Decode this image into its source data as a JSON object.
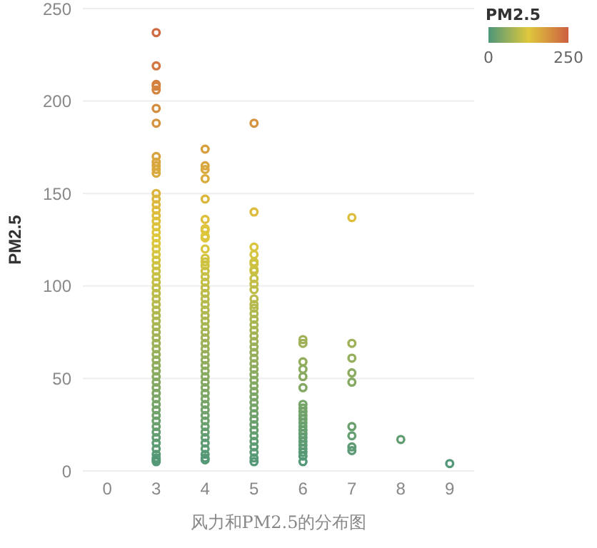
{
  "chart_data": {
    "type": "scatter",
    "xlabel": "风力和PM2.5的分布图",
    "ylabel": "PM2.5",
    "clabel": "PM2.5",
    "categories": [
      "0",
      "3",
      "4",
      "5",
      "6",
      "7",
      "8",
      "9"
    ],
    "ylim": [
      0,
      250
    ],
    "yticks": [
      0,
      50,
      100,
      150,
      200,
      250
    ],
    "grid": "y",
    "marker": "circle",
    "clim": [
      0,
      250
    ],
    "cticks": [
      0,
      250
    ],
    "series": [
      {
        "x": [
          "3",
          "3",
          "3",
          "3",
          "3",
          "3",
          "3",
          "3",
          "3",
          "3",
          "3",
          "3",
          "3",
          "3",
          "3",
          "3",
          "3",
          "3",
          "3",
          "3",
          "3",
          "3",
          "3",
          "3",
          "3",
          "3",
          "3",
          "3",
          "3",
          "3",
          "3",
          "3",
          "3",
          "3",
          "3",
          "3",
          "3",
          "3",
          "3",
          "3",
          "3",
          "3",
          "3",
          "3",
          "3",
          "3",
          "3",
          "3",
          "3",
          "3",
          "3",
          "3",
          "3",
          "3",
          "3",
          "3",
          "3",
          "3",
          "3",
          "3",
          "3",
          "3",
          "3",
          "4",
          "4",
          "4",
          "4",
          "4",
          "4",
          "4",
          "4",
          "4",
          "4",
          "4",
          "4",
          "4",
          "4",
          "4",
          "4",
          "4",
          "4",
          "4",
          "4",
          "4",
          "4",
          "4",
          "4",
          "4",
          "4",
          "4",
          "4",
          "4",
          "4",
          "4",
          "4",
          "4",
          "4",
          "4",
          "4",
          "4",
          "4",
          "4",
          "4",
          "4",
          "4",
          "4",
          "4",
          "4",
          "4",
          "4",
          "4",
          "4",
          "4",
          "5",
          "5",
          "5",
          "5",
          "5",
          "5",
          "5",
          "5",
          "5",
          "5",
          "5",
          "5",
          "5",
          "5",
          "5",
          "5",
          "5",
          "5",
          "5",
          "5",
          "5",
          "5",
          "5",
          "5",
          "5",
          "5",
          "5",
          "5",
          "5",
          "5",
          "5",
          "5",
          "5",
          "5",
          "5",
          "5",
          "5",
          "5",
          "5",
          "5",
          "5",
          "5",
          "6",
          "6",
          "6",
          "6",
          "6",
          "6",
          "6",
          "6",
          "6",
          "6",
          "6",
          "6",
          "6",
          "6",
          "6",
          "6",
          "6",
          "6",
          "6",
          "6",
          "6",
          "6",
          "7",
          "7",
          "7",
          "7",
          "7",
          "7",
          "7",
          "7",
          "7",
          "8",
          "9"
        ],
        "values": [
          237,
          219,
          209,
          208,
          206,
          196,
          188,
          170,
          167,
          165,
          163,
          161,
          150,
          147,
          144,
          141,
          138,
          135,
          132,
          129,
          126,
          123,
          120,
          117,
          114,
          111,
          108,
          105,
          102,
          99,
          96,
          93,
          90,
          87,
          84,
          81,
          78,
          75,
          72,
          69,
          66,
          63,
          60,
          57,
          54,
          51,
          48,
          45,
          42,
          39,
          36,
          33,
          30,
          27,
          24,
          21,
          18,
          15,
          12,
          9,
          7,
          6,
          5,
          174,
          165,
          163,
          158,
          147,
          136,
          131,
          130,
          127,
          126,
          120,
          115,
          113,
          111,
          108,
          105,
          102,
          99,
          96,
          93,
          90,
          87,
          84,
          81,
          78,
          75,
          72,
          69,
          66,
          63,
          60,
          57,
          54,
          51,
          48,
          45,
          42,
          39,
          36,
          33,
          30,
          27,
          24,
          21,
          18,
          15,
          12,
          9,
          7,
          6,
          188,
          140,
          121,
          117,
          113,
          109,
          112,
          108,
          104,
          101,
          98,
          93,
          90,
          88,
          85,
          82,
          79,
          76,
          73,
          70,
          67,
          64,
          61,
          58,
          55,
          52,
          49,
          46,
          43,
          40,
          37,
          34,
          31,
          28,
          25,
          22,
          19,
          16,
          13,
          10,
          7,
          5,
          71,
          69,
          59,
          55,
          51,
          45,
          36,
          34,
          32,
          30,
          28,
          26,
          24,
          22,
          20,
          18,
          16,
          14,
          12,
          10,
          8,
          5,
          137,
          69,
          61,
          53,
          48,
          24,
          19,
          13,
          11,
          17,
          4
        ],
        "cvalues": [
          237,
          219,
          209,
          208,
          206,
          196,
          188,
          170,
          167,
          165,
          163,
          161,
          150,
          147,
          144,
          141,
          138,
          135,
          132,
          129,
          126,
          123,
          120,
          117,
          114,
          111,
          108,
          105,
          102,
          99,
          96,
          93,
          90,
          87,
          84,
          81,
          78,
          75,
          72,
          69,
          66,
          63,
          60,
          57,
          54,
          51,
          48,
          45,
          42,
          39,
          36,
          33,
          30,
          27,
          24,
          21,
          18,
          15,
          12,
          9,
          7,
          6,
          5,
          174,
          165,
          163,
          158,
          147,
          136,
          131,
          130,
          127,
          126,
          120,
          115,
          113,
          111,
          108,
          105,
          102,
          99,
          96,
          93,
          90,
          87,
          84,
          81,
          78,
          75,
          72,
          69,
          66,
          63,
          60,
          57,
          54,
          51,
          48,
          45,
          42,
          39,
          36,
          33,
          30,
          27,
          24,
          21,
          18,
          15,
          12,
          9,
          7,
          6,
          188,
          140,
          121,
          117,
          113,
          109,
          112,
          108,
          104,
          101,
          98,
          93,
          90,
          88,
          85,
          82,
          79,
          76,
          73,
          70,
          67,
          64,
          61,
          58,
          55,
          52,
          49,
          46,
          43,
          40,
          37,
          34,
          31,
          28,
          25,
          22,
          19,
          16,
          13,
          10,
          7,
          5,
          71,
          69,
          59,
          55,
          51,
          45,
          36,
          34,
          32,
          30,
          28,
          26,
          24,
          22,
          20,
          18,
          16,
          14,
          12,
          10,
          8,
          5,
          137,
          69,
          61,
          53,
          48,
          24,
          19,
          13,
          11,
          17,
          4
        ]
      }
    ]
  }
}
